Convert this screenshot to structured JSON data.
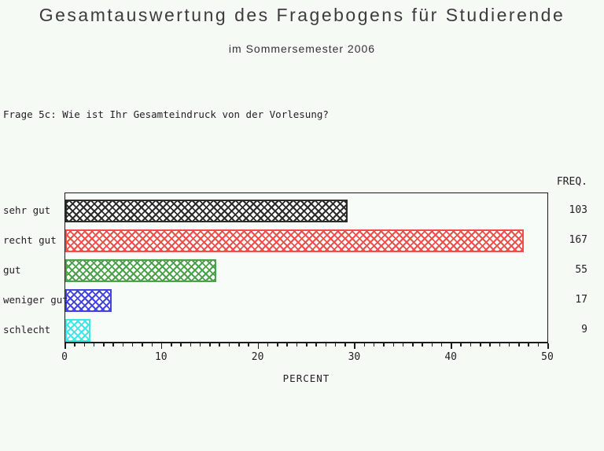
{
  "page": {
    "title": "Gesamtauswertung des Fragebogens für Studierende",
    "subtitle": "im Sommersemester 2006",
    "question": "Frage 5c: Wie ist Ihr Gesamteindruck von der Vorlesung?"
  },
  "chart_data": {
    "type": "bar",
    "orientation": "horizontal",
    "title": "Gesamtauswertung des Fragebogens für Studierende",
    "subtitle": "im Sommersemester 2006",
    "question": "Frage 5c: Wie ist Ihr Gesamteindruck von der Vorlesung?",
    "categories": [
      "sehr gut",
      "recht gut",
      "gut",
      "weniger gut",
      "schlecht"
    ],
    "frequencies": [
      103,
      167,
      55,
      17,
      9
    ],
    "percents": [
      29.3,
      47.6,
      15.7,
      4.8,
      2.6
    ],
    "bar_colors": [
      "#2b2b2b",
      "#ee4f4a",
      "#4aa14a",
      "#4343dd",
      "#3ee6e6"
    ],
    "bar_pattern": "crosshatch",
    "freq_column_header": "FREQ.",
    "xlabel": "PERCENT",
    "xlim": [
      0,
      50
    ],
    "x_major_ticks": [
      0,
      10,
      20,
      30,
      40,
      50
    ],
    "x_minor_tick_step": 1,
    "grid": false,
    "legend": "none",
    "frame_color": "#1b1b1b",
    "background_color": "#f5faf4"
  }
}
